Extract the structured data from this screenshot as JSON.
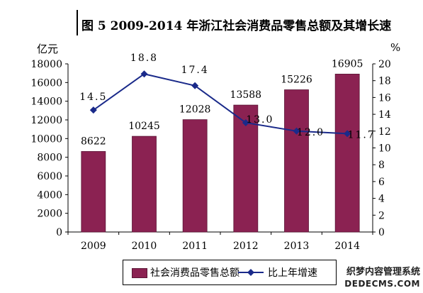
{
  "title": "图 5   2009-2014 年浙江社会消费品零售总额及其增长速",
  "left_unit": "亿元",
  "right_unit": "%",
  "legend": {
    "bar_label": "社会消费品零售总额",
    "line_label": "比上年增速"
  },
  "watermark": {
    "line1": "织梦内容管理系统",
    "line2": "DEDECMS.COM"
  },
  "chart_data": {
    "type": "bar",
    "categories": [
      "2009",
      "2010",
      "2011",
      "2012",
      "2013",
      "2014"
    ],
    "series": [
      {
        "name": "社会消费品零售总额",
        "type": "bar",
        "axis": "left",
        "values": [
          8622,
          10245,
          12028,
          13588,
          15226,
          16905
        ],
        "labels": [
          "8622",
          "10245",
          "12028",
          "13588",
          "15226",
          "16905"
        ]
      },
      {
        "name": "比上年增速",
        "type": "line",
        "axis": "right",
        "values": [
          14.5,
          18.8,
          17.4,
          13.0,
          12.0,
          11.7
        ],
        "labels": [
          "14.5",
          "18.8",
          "17.4",
          "13.0",
          "12.0",
          "11.7"
        ]
      }
    ],
    "y_left": {
      "min": 0,
      "max": 18000,
      "step": 2000
    },
    "y_right": {
      "min": 0,
      "max": 20,
      "step": 2
    },
    "colors": {
      "bar": "#8B2252",
      "line": "#1a2a8a"
    },
    "grid": false,
    "legend_position": "bottom"
  }
}
